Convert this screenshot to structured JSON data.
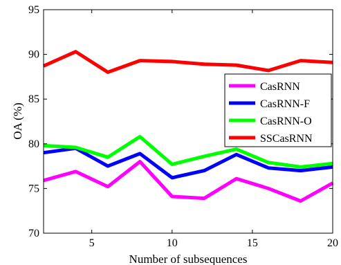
{
  "chart_data": {
    "type": "line",
    "title": "",
    "xlabel": "Number of subsequences",
    "ylabel": "OA (%)",
    "xlim": [
      2,
      20
    ],
    "ylim": [
      70,
      95
    ],
    "xticks": [
      5,
      10,
      15,
      20
    ],
    "yticks": [
      70,
      75,
      80,
      85,
      90,
      95
    ],
    "grid": false,
    "legend_position": "right",
    "x": [
      2,
      4,
      6,
      8,
      10,
      12,
      14,
      16,
      18,
      20
    ],
    "series": [
      {
        "name": "CasRNN",
        "color": "#ff00ff",
        "values": [
          75.9,
          76.9,
          75.2,
          78.0,
          74.1,
          73.9,
          76.1,
          75.0,
          73.6,
          75.6
        ]
      },
      {
        "name": "CasRNN-F",
        "color": "#0000ff",
        "values": [
          79.0,
          79.5,
          77.5,
          78.9,
          76.2,
          77.0,
          78.8,
          77.3,
          77.0,
          77.4
        ]
      },
      {
        "name": "CasRNN-O",
        "color": "#00ff00",
        "values": [
          79.8,
          79.6,
          78.5,
          80.8,
          77.7,
          78.6,
          79.4,
          77.9,
          77.4,
          77.8
        ]
      },
      {
        "name": "SSCasRNN",
        "color": "#ff0000",
        "values": [
          88.7,
          90.3,
          88.0,
          89.3,
          89.2,
          88.9,
          88.8,
          88.2,
          89.3,
          89.1
        ]
      }
    ]
  }
}
